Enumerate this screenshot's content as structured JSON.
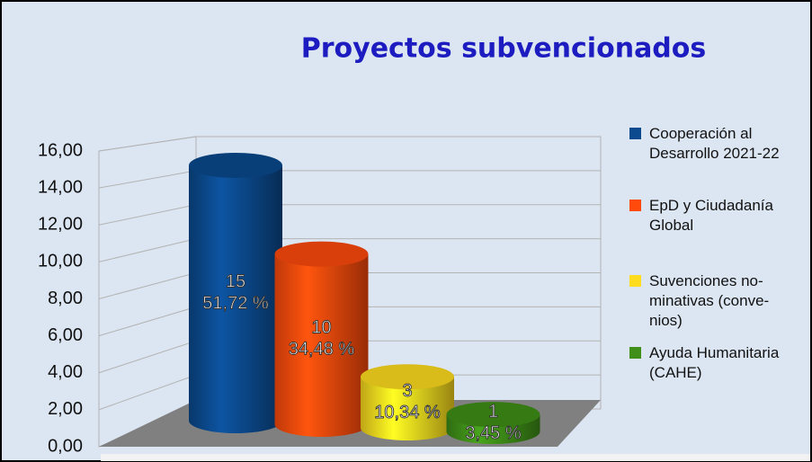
{
  "chart_data": {
    "type": "cylinder",
    "title": "Proyectos subvencionados",
    "categories": [
      "Cooperación al Desarrollo 2021-22",
      "EpD y Ciudadanía Global",
      "Suvenciones no-minativas (conve-nios)",
      "Ayuda Humanitaria (CAHE)"
    ],
    "values": [
      15,
      10,
      3,
      1
    ],
    "percents": [
      {
        "value": 51.72,
        "label": "51,72 %"
      },
      {
        "value": 34.48,
        "label": "34,48 %"
      },
      {
        "value": 10.34,
        "label": "10,34 %"
      },
      {
        "value": 3.45,
        "label": "3,45 %"
      }
    ],
    "colors": [
      "#0b4a8e",
      "#ff4a0c",
      "#ffdc1e",
      "#3f8f18"
    ],
    "ylim": [
      0,
      16
    ],
    "yticks": [
      {
        "value": 0,
        "label": "0,00"
      },
      {
        "value": 2,
        "label": "2,00"
      },
      {
        "value": 4,
        "label": "4,00"
      },
      {
        "value": 6,
        "label": "6,00"
      },
      {
        "value": 8,
        "label": "8,00"
      },
      {
        "value": 10,
        "label": "10,00"
      },
      {
        "value": 12,
        "label": "12,00"
      },
      {
        "value": 14,
        "label": "14,00"
      },
      {
        "value": 16,
        "label": "16,00"
      }
    ],
    "grid": true,
    "legend": "right"
  }
}
